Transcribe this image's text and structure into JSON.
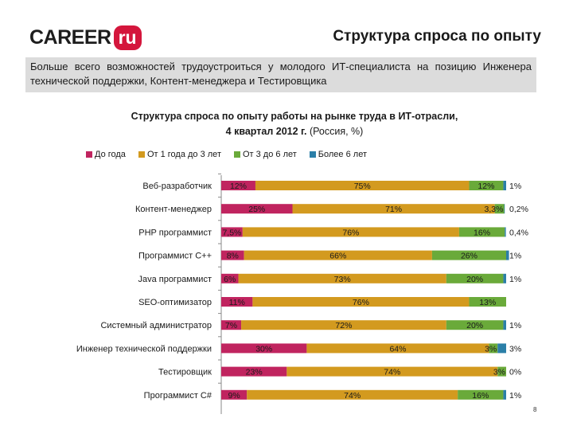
{
  "header": {
    "logo_text": "CAREER",
    "logo_badge": "ru",
    "slide_title": "Структура спроса по опыту",
    "subtitle": "Больше всего возможностей трудоустроиться у молодого ИТ-специалиста на позицию Инженера технической поддержки, Контент-менеджера и Тестировщика"
  },
  "page_number": "8",
  "colors": {
    "series": [
      "#c0245f",
      "#d39a1f",
      "#6aaa3a",
      "#2b7fa8"
    ]
  },
  "chart_data": {
    "type": "bar",
    "orientation": "horizontal",
    "stacked": "percent",
    "title_line1": "Структура спроса по опыту работы на рынке труда в ИТ-отрасли,",
    "title_line2_bold": "4 квартал 2012 г.",
    "title_line2_rest": " (Россия, %)",
    "legend_position": "top",
    "categories": [
      "Веб-разработчик",
      "Контент-менеджер",
      "PHP программист",
      "Программист С++",
      "Java программист",
      "SEO-оптимизатор",
      "Системный администратор",
      "Инженер технической поддержки",
      "Тестировщик",
      "Программист C#"
    ],
    "series": [
      {
        "name": "До года",
        "values": [
          12,
          25,
          7.5,
          8,
          6,
          11,
          7,
          30,
          23,
          9
        ],
        "labels": [
          "12%",
          "25%",
          "7,5%",
          "8%",
          "6%",
          "11%",
          "7%",
          "30%",
          "23%",
          "9%"
        ]
      },
      {
        "name": "От 1 года до 3 лет",
        "values": [
          75,
          71,
          76,
          66,
          73,
          76,
          72,
          64,
          74,
          74
        ],
        "labels": [
          "75%",
          "71%",
          "76%",
          "66%",
          "73%",
          "76%",
          "72%",
          "64%",
          "74%",
          "74%"
        ]
      },
      {
        "name": "От 3 до 6 лет",
        "values": [
          12,
          3.3,
          16,
          26,
          20,
          13,
          20,
          3,
          3,
          16
        ],
        "labels": [
          "12%",
          "3,3%",
          "16%",
          "26%",
          "20%",
          "13%",
          "20%",
          "3%",
          "3%",
          "16%"
        ]
      },
      {
        "name": "Более 6 лет",
        "values": [
          1,
          0.2,
          0.4,
          1,
          1,
          0,
          1,
          3,
          0,
          1
        ],
        "labels": [
          "1%",
          "0,2%",
          "0,4%",
          "1%",
          "1%",
          "",
          "1%",
          "3%",
          "0%",
          "1%"
        ]
      }
    ]
  }
}
